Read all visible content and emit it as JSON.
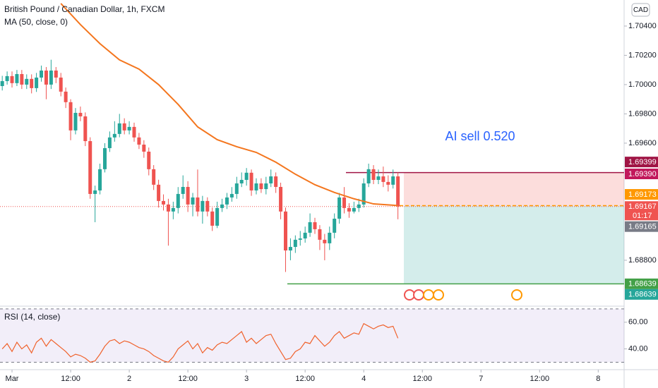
{
  "chart_data": [
    {
      "type": "candlestick",
      "title": "British Pound / Canadian Dollar, 1h, FXCM",
      "currency": "CAD",
      "annotation": "AI sell 0.520",
      "countdown": "01:17",
      "up_color": "#26a69a",
      "down_color": "#ef5350",
      "x": [
        -2,
        -1,
        0,
        1,
        2,
        3,
        4,
        5,
        6,
        7,
        8,
        9,
        10,
        11,
        12,
        13,
        14,
        15,
        16,
        17,
        18,
        19,
        20,
        21,
        22,
        23,
        24,
        25,
        26,
        27,
        28,
        29,
        30,
        31,
        32,
        33,
        34,
        35,
        36,
        37,
        38,
        39,
        40,
        41,
        42,
        43,
        44,
        45,
        46,
        47,
        48,
        49,
        50,
        51,
        52,
        53,
        54,
        55,
        56,
        57,
        58,
        59,
        60,
        61,
        62,
        63,
        64,
        65,
        66,
        67,
        68,
        69,
        70,
        71,
        72,
        73,
        74,
        75,
        76,
        77,
        78,
        79
      ],
      "open": [
        1.6999,
        1.70024,
        1.70058,
        1.7001,
        1.70072,
        1.7,
        1.70039,
        1.69976,
        1.70048,
        1.70096,
        1.7,
        1.70096,
        1.70048,
        1.69952,
        1.6988,
        1.69687,
        1.69807,
        1.69783,
        1.69614,
        1.69253,
        1.69277,
        1.69422,
        1.69566,
        1.69639,
        1.69663,
        1.69735,
        1.69687,
        1.69711,
        1.69639,
        1.6959,
        1.69542,
        1.69422,
        1.69316,
        1.69205,
        1.69181,
        1.69133,
        1.69157,
        1.69253,
        1.69301,
        1.69181,
        1.69229,
        1.69133,
        1.69205,
        1.69133,
        1.69036,
        1.69157,
        1.69181,
        1.69229,
        1.69253,
        1.69325,
        1.69349,
        1.69398,
        1.69277,
        1.69325,
        1.69286,
        1.69325,
        1.69373,
        1.69301,
        1.69133,
        1.68867,
        1.68891,
        1.6894,
        1.68949,
        1.68988,
        1.6906,
        1.69012,
        1.6894,
        1.68916,
        1.68988,
        1.69084,
        1.69229,
        1.69157,
        1.69133,
        1.69157,
        1.69181,
        1.69325,
        1.69422,
        1.69349,
        1.69373,
        1.69335,
        1.69316,
        1.69373
      ],
      "high": [
        1.7006,
        1.7009,
        1.7009,
        1.701,
        1.701,
        1.7007,
        1.7007,
        1.7008,
        1.7013,
        1.7012,
        1.7017,
        1.7012,
        1.7008,
        1.6998,
        1.699,
        1.6984,
        1.6985,
        1.6981,
        1.6964,
        1.6931,
        1.6946,
        1.696,
        1.6968,
        1.6975,
        1.698,
        1.6977,
        1.6975,
        1.6974,
        1.6967,
        1.6962,
        1.6957,
        1.6945,
        1.6935,
        1.6925,
        1.6922,
        1.692,
        1.693,
        1.6938,
        1.6934,
        1.6926,
        1.6942,
        1.6924,
        1.6923,
        1.6916,
        1.692,
        1.6922,
        1.6926,
        1.693,
        1.6937,
        1.694,
        1.6943,
        1.6942,
        1.6936,
        1.6936,
        1.6937,
        1.6942,
        1.694,
        1.6933,
        1.6916,
        1.6895,
        1.6897,
        1.69,
        1.6903,
        1.6912,
        1.6909,
        1.6904,
        1.6898,
        1.6903,
        1.6912,
        1.6926,
        1.693,
        1.6919,
        1.692,
        1.6922,
        1.6936,
        1.6946,
        1.6945,
        1.6942,
        1.6944,
        1.6938,
        1.6942,
        1.694
      ],
      "low": [
        1.6996,
        1.7,
        1.6998,
        1.6999,
        1.6997,
        1.6997,
        1.6994,
        1.6995,
        1.7002,
        1.699,
        1.6997,
        1.7001,
        1.6992,
        1.6984,
        1.6962,
        1.6966,
        1.6975,
        1.6958,
        1.6922,
        1.6906,
        1.6925,
        1.694,
        1.6954,
        1.6961,
        1.6964,
        1.6966,
        1.6966,
        1.6961,
        1.6956,
        1.695,
        1.6938,
        1.6928,
        1.6916,
        1.6914,
        1.689,
        1.6908,
        1.6912,
        1.6922,
        1.6913,
        1.691,
        1.691,
        1.6905,
        1.691,
        1.69,
        1.6902,
        1.6913,
        1.6915,
        1.692,
        1.6922,
        1.693,
        1.6931,
        1.6924,
        1.6925,
        1.6926,
        1.6925,
        1.693,
        1.6926,
        1.6908,
        1.6872,
        1.688,
        1.6885,
        1.689,
        1.6892,
        1.6896,
        1.6898,
        1.6887,
        1.688,
        1.6887,
        1.6895,
        1.6905,
        1.6912,
        1.6909,
        1.6912,
        1.6913,
        1.6916,
        1.693,
        1.6932,
        1.6932,
        1.693,
        1.6927,
        1.6929,
        1.6908
      ],
      "close": [
        1.70024,
        1.70058,
        1.7001,
        1.70072,
        1.7,
        1.70039,
        1.69976,
        1.70048,
        1.70096,
        1.7,
        1.70096,
        1.70048,
        1.69952,
        1.6988,
        1.69687,
        1.69807,
        1.69783,
        1.69614,
        1.69253,
        1.69277,
        1.69422,
        1.69566,
        1.69639,
        1.69663,
        1.69735,
        1.69687,
        1.69711,
        1.69639,
        1.6959,
        1.69542,
        1.69422,
        1.69316,
        1.69205,
        1.69181,
        1.69133,
        1.69157,
        1.69253,
        1.69301,
        1.69181,
        1.69229,
        1.69133,
        1.69205,
        1.69133,
        1.69036,
        1.69157,
        1.69181,
        1.69229,
        1.69253,
        1.69325,
        1.69349,
        1.69398,
        1.69277,
        1.69325,
        1.69286,
        1.69325,
        1.69373,
        1.69301,
        1.69133,
        1.68867,
        1.68891,
        1.6894,
        1.68949,
        1.68988,
        1.6906,
        1.69012,
        1.6894,
        1.68916,
        1.68988,
        1.69084,
        1.69229,
        1.69157,
        1.69133,
        1.69157,
        1.69181,
        1.69325,
        1.69422,
        1.69349,
        1.69373,
        1.69335,
        1.69316,
        1.69373,
        1.69167
      ],
      "series": [
        {
          "name": "MA (50, close, 0)",
          "color": "#f4761e",
          "x": [
            10,
            14,
            18,
            22,
            26,
            30,
            34,
            38,
            42,
            46,
            50,
            54,
            58,
            62,
            66,
            70,
            74,
            78,
            79
          ],
          "values": [
            1.70554,
            1.7041,
            1.7028,
            1.70169,
            1.70106,
            1.7,
            1.69865,
            1.69711,
            1.69624,
            1.69576,
            1.69537,
            1.6947,
            1.69388,
            1.69316,
            1.69263,
            1.6922,
            1.69185,
            1.69176,
            1.69173
          ]
        }
      ],
      "price_labels": [
        {
          "value": 1.69399,
          "label": "1.69399",
          "color": "#a01545"
        },
        {
          "value": 1.6939,
          "label": "1.69390",
          "color": "#c2185b"
        },
        {
          "value": 1.69173,
          "label": "1.69173",
          "color": "#ff9800"
        },
        {
          "value": 1.69167,
          "label": "1.69167",
          "color": "#ef5350"
        },
        {
          "value": 1.69165,
          "label": "1.69165",
          "color": "#787b86"
        },
        {
          "value": 1.68639,
          "label": "1.68639",
          "color": "#43a047"
        },
        {
          "value": 1.68639,
          "label": "1.68639",
          "color": "#26a69a"
        }
      ],
      "ylim": [
        1.68496,
        1.70578
      ],
      "yticks": [
        {
          "value": 1.704,
          "label": "1.70400"
        },
        {
          "value": 1.702,
          "label": "1.70200"
        },
        {
          "value": 1.7,
          "label": "1.70000"
        },
        {
          "value": 1.698,
          "label": "1.69800"
        },
        {
          "value": 1.696,
          "label": "1.69600"
        },
        {
          "value": 1.688,
          "label": "1.68800"
        }
      ],
      "xlim": [
        -2.46,
        125.3
      ],
      "xticks": [
        {
          "value": 0,
          "label": "Mar"
        },
        {
          "value": 12,
          "label": "12:00"
        },
        {
          "value": 24,
          "label": "2"
        },
        {
          "value": 36,
          "label": "12:00"
        },
        {
          "value": 48,
          "label": "3"
        },
        {
          "value": 60,
          "label": "12:00"
        },
        {
          "value": 72,
          "label": "4"
        },
        {
          "value": 84,
          "label": "12:00"
        },
        {
          "value": 96,
          "label": "7"
        },
        {
          "value": 108,
          "label": "12:00"
        },
        {
          "value": 120,
          "label": "8"
        }
      ]
    },
    {
      "type": "line",
      "title": "RSI (14, close)",
      "color": "#f0622c",
      "band_color": "#7e57c2",
      "x": [
        -2,
        -1,
        0,
        1,
        2,
        3,
        4,
        5,
        6,
        7,
        8,
        9,
        10,
        11,
        12,
        13,
        14,
        15,
        16,
        17,
        18,
        19,
        20,
        21,
        22,
        23,
        24,
        25,
        26,
        27,
        28,
        29,
        30,
        31,
        32,
        33,
        34,
        35,
        36,
        37,
        38,
        39,
        40,
        41,
        42,
        43,
        44,
        45,
        46,
        47,
        48,
        49,
        50,
        51,
        52,
        53,
        54,
        55,
        56,
        57,
        58,
        59,
        60,
        61,
        62,
        63,
        64,
        65,
        66,
        67,
        68,
        69,
        70,
        71,
        72,
        73,
        74,
        75,
        76,
        77,
        78,
        79
      ],
      "values": [
        40,
        44,
        38,
        45,
        40,
        43,
        37,
        45,
        48,
        42,
        47,
        44,
        41,
        38,
        34,
        36,
        35,
        33,
        30,
        31,
        36,
        42,
        46,
        47,
        44,
        46,
        45,
        43,
        41,
        40,
        38,
        35,
        33,
        31,
        30,
        34,
        40,
        43,
        46,
        40,
        44,
        37,
        41,
        39,
        43,
        45,
        44,
        47,
        50,
        53,
        45,
        48,
        44,
        47,
        50,
        51,
        44,
        38,
        32,
        33,
        38,
        40,
        45,
        44,
        50,
        46,
        42,
        45,
        50,
        53,
        48,
        50,
        52,
        51,
        59,
        57,
        55,
        57,
        58,
        56,
        57,
        48
      ],
      "bands": [
        30,
        70
      ],
      "ylim": [
        26,
        71
      ],
      "yticks": [
        {
          "value": 60,
          "label": "60.00"
        },
        {
          "value": 40,
          "label": "40.00"
        }
      ],
      "xlim": [
        -2.46,
        125.3
      ]
    }
  ]
}
